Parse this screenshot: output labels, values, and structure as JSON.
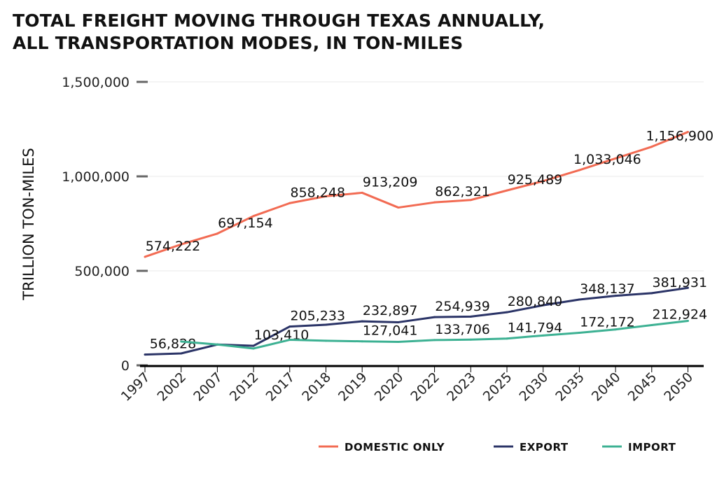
{
  "chart_data": {
    "type": "line",
    "title": "TOTAL FREIGHT MOVING THROUGH TEXAS ANNUALLY,\nALL TRANSPORTATION MODES, IN TON-MILES",
    "ylabel": "TRILLION TON-MILES",
    "xlabel": "",
    "ylim": [
      0,
      1500000
    ],
    "yticks": [
      "0",
      "500,000",
      "1,000,000",
      "1,500,000"
    ],
    "ytick_values": [
      0,
      500000,
      1000000,
      1500000
    ],
    "grid": true,
    "legend_position": "bottom-right",
    "categories": [
      "1997",
      "2002",
      "2007",
      "2012",
      "2017",
      "2018",
      "2019",
      "2020",
      "2022",
      "2023",
      "2025",
      "2030",
      "2035",
      "2040",
      "2045",
      "2050"
    ],
    "series": [
      {
        "name": "DOMESTIC ONLY",
        "color": "#f26b53",
        "values": [
          574222,
          640000,
          697154,
          790000,
          858248,
          895000,
          913209,
          835000,
          862321,
          875000,
          925489,
          975000,
          1033046,
          1095000,
          1156900,
          1235000
        ],
        "labels": [
          "574,222",
          null,
          "697,154",
          null,
          "858,248",
          null,
          "913,209",
          null,
          "862,321",
          null,
          "925,489",
          null,
          "1,033,046",
          null,
          "1,156,900",
          null
        ]
      },
      {
        "name": "EXPORT",
        "color": "#2b3467",
        "values": [
          56828,
          63000,
          110000,
          103410,
          205233,
          215000,
          232897,
          228000,
          254939,
          258000,
          280840,
          318000,
          348137,
          368000,
          381931,
          410000
        ],
        "labels": [
          "56,828",
          null,
          null,
          "103,410",
          "205,233",
          null,
          "232,897",
          null,
          "254,939",
          null,
          "280,840",
          null,
          "348,137",
          null,
          "381,931",
          null
        ]
      },
      {
        "name": "IMPORT",
        "color": "#3db193",
        "values": [
          null,
          126000,
          110000,
          89000,
          135000,
          130000,
          127041,
          124000,
          133706,
          136000,
          141794,
          158000,
          172172,
          190000,
          212924,
          235000
        ],
        "labels": [
          null,
          null,
          null,
          null,
          null,
          null,
          "127,041",
          null,
          "133,706",
          null,
          "141,794",
          null,
          "172,172",
          null,
          "212,924",
          null
        ]
      }
    ]
  }
}
